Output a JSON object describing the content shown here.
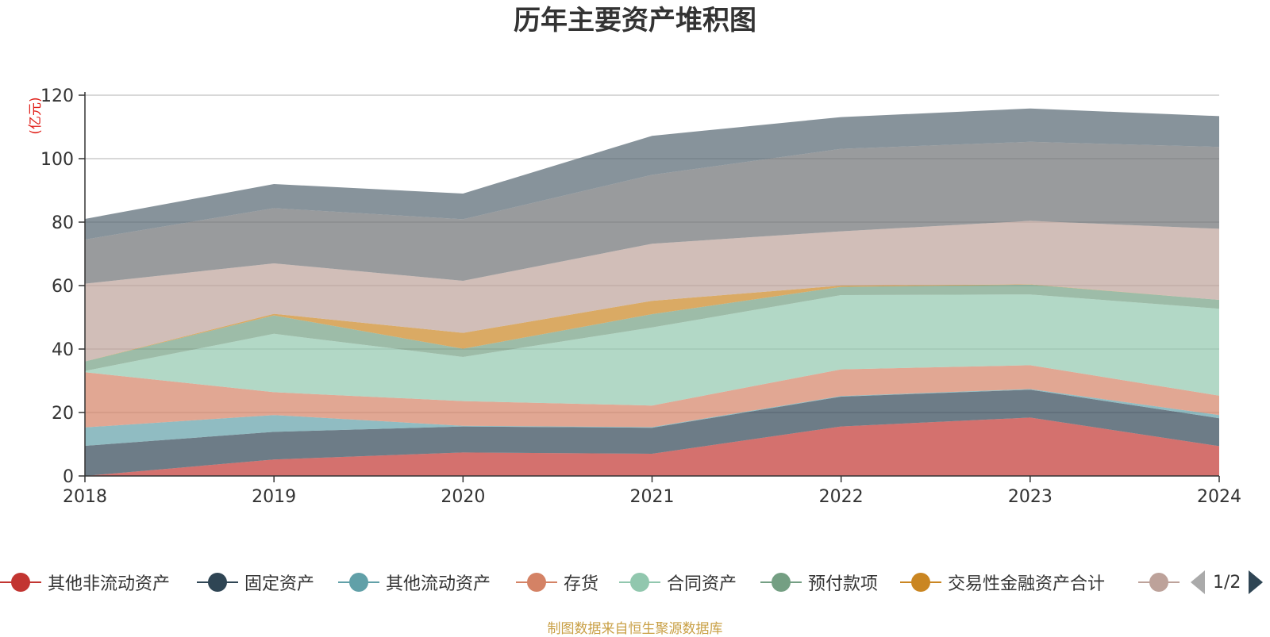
{
  "chart_data": {
    "type": "area",
    "title": "历年主要资产堆积图",
    "ylabel": "(亿元)",
    "x": [
      "2018",
      "2019",
      "2020",
      "2021",
      "2022",
      "2023",
      "2024"
    ],
    "ylim": [
      0,
      120
    ],
    "yticks": [
      0,
      20,
      40,
      60,
      80,
      100,
      120
    ],
    "stacked": true,
    "grid": true,
    "series": [
      {
        "name": "其他非流动资产",
        "color": "#c23531",
        "values": [
          0,
          5.2,
          7.4,
          7.0,
          15.6,
          18.4,
          9.4
        ]
      },
      {
        "name": "固定资产",
        "color": "#2f4554",
        "values": [
          9.5,
          8.7,
          8.2,
          8.2,
          9.4,
          8.8,
          8.8
        ]
      },
      {
        "name": "其他流动资产",
        "color": "#61a0a8",
        "values": [
          5.8,
          5.3,
          0.2,
          0.2,
          0.2,
          0.2,
          1.0
        ]
      },
      {
        "name": "存货",
        "color": "#d48265",
        "values": [
          17.4,
          7.2,
          7.8,
          6.8,
          8.4,
          7.5,
          6.1
        ]
      },
      {
        "name": "合同资产",
        "color": "#91c7ae",
        "values": [
          0.4,
          18.4,
          13.9,
          24.6,
          23.4,
          22.3,
          27.4
        ]
      },
      {
        "name": "预付款项",
        "color": "#749f83",
        "values": [
          3.0,
          5.8,
          2.6,
          4.2,
          2.6,
          3.1,
          2.8
        ]
      },
      {
        "name": "交易性金融资产合计",
        "color": "#ca8622",
        "values": [
          0,
          0.5,
          5.0,
          4.2,
          0.4,
          0.1,
          0
        ]
      },
      {
        "name": "",
        "color": "#bda29a",
        "values": [
          24.5,
          15.9,
          16.4,
          18.0,
          17.1,
          20.0,
          22.4
        ]
      },
      {
        "name": "",
        "color": "#6e7074",
        "values": [
          13.9,
          17.4,
          19.4,
          21.7,
          26.0,
          24.9,
          25.8
        ]
      },
      {
        "name": "",
        "color": "#546570",
        "values": [
          6.5,
          7.6,
          8.1,
          12.3,
          10.0,
          10.5,
          9.7
        ]
      }
    ],
    "legend_position": "bottom"
  },
  "legend": {
    "page_text": "1/2"
  },
  "source_note": "制图数据来自恒生聚源数据库"
}
